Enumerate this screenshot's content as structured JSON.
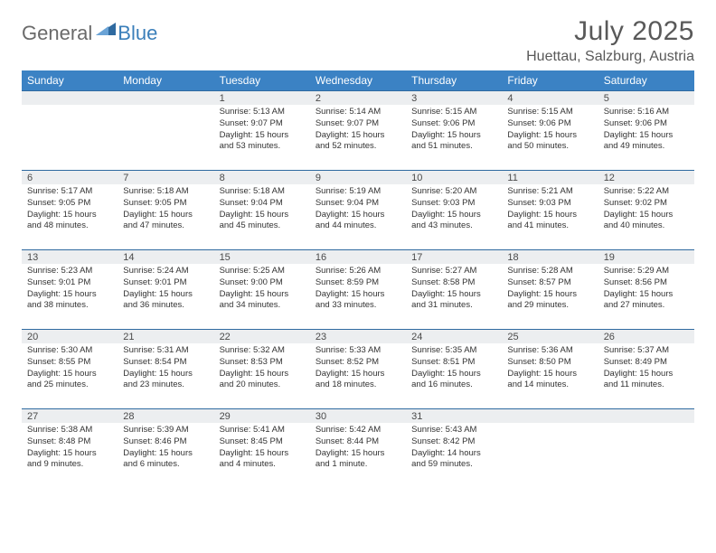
{
  "logo": {
    "part1": "General",
    "part2": "Blue"
  },
  "title": "July 2025",
  "location": "Huettau, Salzburg, Austria",
  "colors": {
    "header_bg": "#3b82c4",
    "header_text": "#ffffff",
    "daynum_bg": "#eceef0",
    "divider": "#2f6aa0",
    "body_text": "#333333",
    "title_text": "#595959",
    "logo_gray": "#6a6a6a",
    "logo_blue": "#3b7fba"
  },
  "weekdays": [
    "Sunday",
    "Monday",
    "Tuesday",
    "Wednesday",
    "Thursday",
    "Friday",
    "Saturday"
  ],
  "weeks": [
    [
      null,
      null,
      {
        "n": "1",
        "sr": "5:13 AM",
        "ss": "9:07 PM",
        "dl": "15 hours and 53 minutes."
      },
      {
        "n": "2",
        "sr": "5:14 AM",
        "ss": "9:07 PM",
        "dl": "15 hours and 52 minutes."
      },
      {
        "n": "3",
        "sr": "5:15 AM",
        "ss": "9:06 PM",
        "dl": "15 hours and 51 minutes."
      },
      {
        "n": "4",
        "sr": "5:15 AM",
        "ss": "9:06 PM",
        "dl": "15 hours and 50 minutes."
      },
      {
        "n": "5",
        "sr": "5:16 AM",
        "ss": "9:06 PM",
        "dl": "15 hours and 49 minutes."
      }
    ],
    [
      {
        "n": "6",
        "sr": "5:17 AM",
        "ss": "9:05 PM",
        "dl": "15 hours and 48 minutes."
      },
      {
        "n": "7",
        "sr": "5:18 AM",
        "ss": "9:05 PM",
        "dl": "15 hours and 47 minutes."
      },
      {
        "n": "8",
        "sr": "5:18 AM",
        "ss": "9:04 PM",
        "dl": "15 hours and 45 minutes."
      },
      {
        "n": "9",
        "sr": "5:19 AM",
        "ss": "9:04 PM",
        "dl": "15 hours and 44 minutes."
      },
      {
        "n": "10",
        "sr": "5:20 AM",
        "ss": "9:03 PM",
        "dl": "15 hours and 43 minutes."
      },
      {
        "n": "11",
        "sr": "5:21 AM",
        "ss": "9:03 PM",
        "dl": "15 hours and 41 minutes."
      },
      {
        "n": "12",
        "sr": "5:22 AM",
        "ss": "9:02 PM",
        "dl": "15 hours and 40 minutes."
      }
    ],
    [
      {
        "n": "13",
        "sr": "5:23 AM",
        "ss": "9:01 PM",
        "dl": "15 hours and 38 minutes."
      },
      {
        "n": "14",
        "sr": "5:24 AM",
        "ss": "9:01 PM",
        "dl": "15 hours and 36 minutes."
      },
      {
        "n": "15",
        "sr": "5:25 AM",
        "ss": "9:00 PM",
        "dl": "15 hours and 34 minutes."
      },
      {
        "n": "16",
        "sr": "5:26 AM",
        "ss": "8:59 PM",
        "dl": "15 hours and 33 minutes."
      },
      {
        "n": "17",
        "sr": "5:27 AM",
        "ss": "8:58 PM",
        "dl": "15 hours and 31 minutes."
      },
      {
        "n": "18",
        "sr": "5:28 AM",
        "ss": "8:57 PM",
        "dl": "15 hours and 29 minutes."
      },
      {
        "n": "19",
        "sr": "5:29 AM",
        "ss": "8:56 PM",
        "dl": "15 hours and 27 minutes."
      }
    ],
    [
      {
        "n": "20",
        "sr": "5:30 AM",
        "ss": "8:55 PM",
        "dl": "15 hours and 25 minutes."
      },
      {
        "n": "21",
        "sr": "5:31 AM",
        "ss": "8:54 PM",
        "dl": "15 hours and 23 minutes."
      },
      {
        "n": "22",
        "sr": "5:32 AM",
        "ss": "8:53 PM",
        "dl": "15 hours and 20 minutes."
      },
      {
        "n": "23",
        "sr": "5:33 AM",
        "ss": "8:52 PM",
        "dl": "15 hours and 18 minutes."
      },
      {
        "n": "24",
        "sr": "5:35 AM",
        "ss": "8:51 PM",
        "dl": "15 hours and 16 minutes."
      },
      {
        "n": "25",
        "sr": "5:36 AM",
        "ss": "8:50 PM",
        "dl": "15 hours and 14 minutes."
      },
      {
        "n": "26",
        "sr": "5:37 AM",
        "ss": "8:49 PM",
        "dl": "15 hours and 11 minutes."
      }
    ],
    [
      {
        "n": "27",
        "sr": "5:38 AM",
        "ss": "8:48 PM",
        "dl": "15 hours and 9 minutes."
      },
      {
        "n": "28",
        "sr": "5:39 AM",
        "ss": "8:46 PM",
        "dl": "15 hours and 6 minutes."
      },
      {
        "n": "29",
        "sr": "5:41 AM",
        "ss": "8:45 PM",
        "dl": "15 hours and 4 minutes."
      },
      {
        "n": "30",
        "sr": "5:42 AM",
        "ss": "8:44 PM",
        "dl": "15 hours and 1 minute."
      },
      {
        "n": "31",
        "sr": "5:43 AM",
        "ss": "8:42 PM",
        "dl": "14 hours and 59 minutes."
      },
      null,
      null
    ]
  ],
  "labels": {
    "sunrise": "Sunrise: ",
    "sunset": "Sunset: ",
    "daylight": "Daylight: "
  }
}
